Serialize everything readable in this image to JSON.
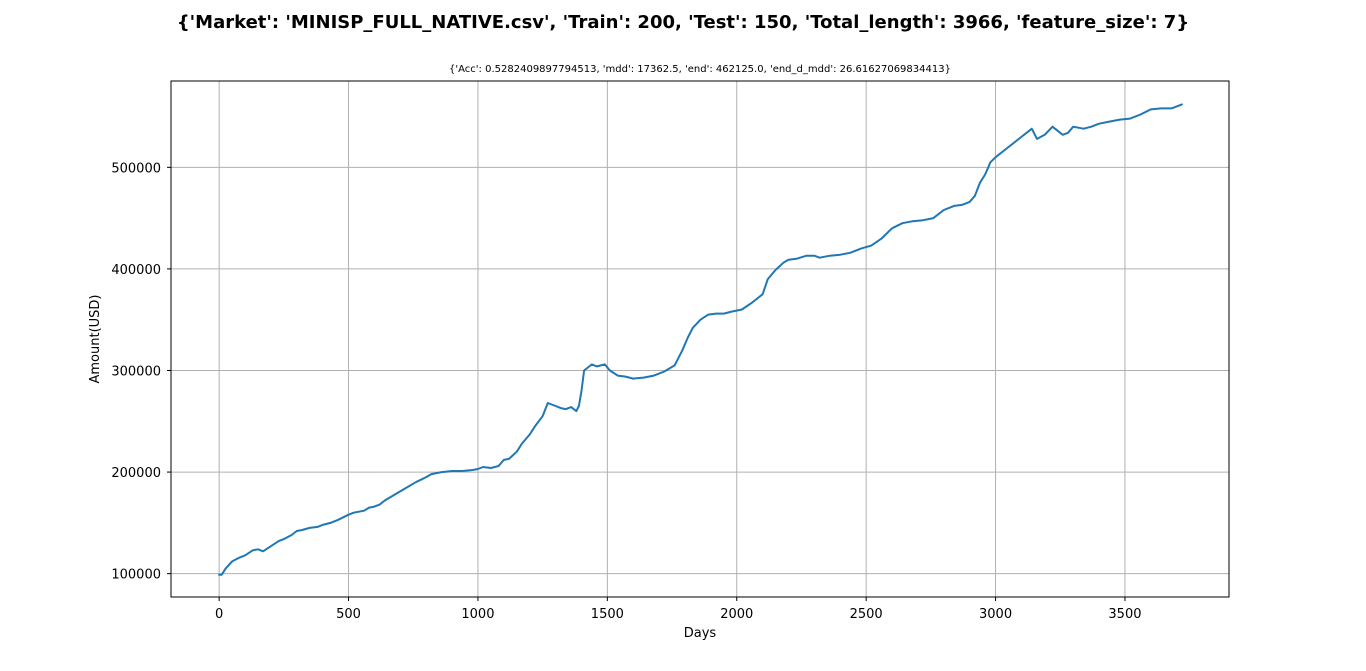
{
  "chart_data": {
    "type": "line",
    "title": "{'Market': 'MINISP_FULL_NATIVE.csv', 'Train': 200, 'Test': 150, 'Total_length': 3966, 'feature_size': 7}",
    "subtitle": "{'Acc': 0.5282409897794513, 'mdd': 17362.5, 'end': 462125.0, 'end_d_mdd': 26.61627069834413}",
    "xlabel": "Days",
    "ylabel": "Amount(USD)",
    "xlim": [
      -186,
      3902
    ],
    "ylim": [
      77000,
      585000
    ],
    "xticks": [
      0,
      500,
      1000,
      1500,
      2000,
      2500,
      3000,
      3500
    ],
    "xtick_labels": [
      "0",
      "500",
      "1000",
      "1500",
      "2000",
      "2500",
      "3000",
      "3500"
    ],
    "yticks": [
      100000,
      200000,
      300000,
      400000,
      500000
    ],
    "ytick_labels": [
      "100000",
      "200000",
      "300000",
      "400000",
      "500000"
    ],
    "grid": true,
    "series": [
      {
        "color": "#1f77b4",
        "x": [
          0,
          10,
          25,
          50,
          80,
          100,
          130,
          150,
          170,
          200,
          230,
          250,
          280,
          300,
          320,
          350,
          380,
          400,
          430,
          460,
          500,
          520,
          560,
          580,
          600,
          620,
          640,
          680,
          720,
          760,
          800,
          820,
          860,
          900,
          940,
          980,
          1000,
          1020,
          1050,
          1080,
          1100,
          1120,
          1150,
          1170,
          1200,
          1220,
          1250,
          1270,
          1300,
          1320,
          1340,
          1360,
          1380,
          1390,
          1400,
          1410,
          1440,
          1460,
          1490,
          1510,
          1540,
          1570,
          1600,
          1640,
          1680,
          1720,
          1760,
          1790,
          1810,
          1830,
          1860,
          1890,
          1920,
          1950,
          1980,
          2020,
          2060,
          2100,
          2120,
          2150,
          2180,
          2200,
          2230,
          2270,
          2300,
          2320,
          2360,
          2400,
          2440,
          2480,
          2520,
          2560,
          2600,
          2640,
          2680,
          2720,
          2760,
          2800,
          2840,
          2870,
          2900,
          2920,
          2940,
          2960,
          2980,
          3000,
          3030,
          3060,
          3100,
          3140,
          3160,
          3190,
          3220,
          3240,
          3260,
          3280,
          3300,
          3340,
          3370,
          3400,
          3440,
          3480,
          3520,
          3560,
          3600,
          3640,
          3680,
          3720
        ],
        "y": [
          99000,
          99000,
          105000,
          112000,
          116000,
          118000,
          123000,
          124000,
          122000,
          127000,
          132000,
          134000,
          138000,
          142000,
          143000,
          145000,
          146000,
          148000,
          150000,
          153000,
          158000,
          160000,
          162000,
          165000,
          166000,
          168000,
          172000,
          178000,
          184000,
          190000,
          195000,
          198000,
          200000,
          201000,
          201000,
          202000,
          203000,
          205000,
          204000,
          206000,
          212000,
          213000,
          220000,
          228000,
          237000,
          245000,
          255000,
          268000,
          265000,
          263000,
          262000,
          264000,
          260000,
          265000,
          280000,
          300000,
          306000,
          304000,
          306000,
          300000,
          295000,
          294000,
          292000,
          293000,
          295000,
          299000,
          305000,
          320000,
          332000,
          342000,
          350000,
          355000,
          356000,
          356000,
          358000,
          360000,
          367000,
          375000,
          390000,
          399000,
          406000,
          409000,
          410000,
          413000,
          413000,
          411000,
          413000,
          414000,
          416000,
          420000,
          423000,
          430000,
          440000,
          445000,
          447000,
          448000,
          450000,
          458000,
          462000,
          463000,
          466000,
          472000,
          485000,
          493000,
          505000,
          510000,
          516000,
          522000,
          530000,
          538000,
          528000,
          532000,
          540000,
          536000,
          532000,
          534000,
          540000,
          538000,
          540000,
          543000,
          545000,
          547000,
          548000,
          552000,
          557000,
          558000,
          558000,
          562000
        ]
      }
    ]
  }
}
